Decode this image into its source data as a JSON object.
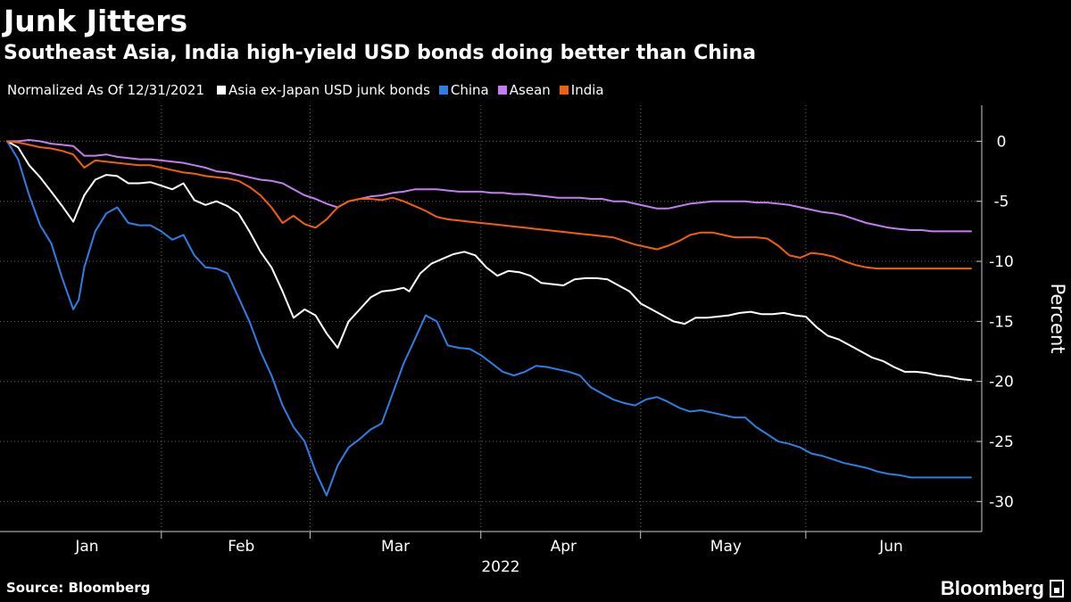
{
  "header": {
    "title": "Junk Jitters",
    "subtitle": "Southeast Asia, India high-yield USD bonds doing better than China"
  },
  "legend": {
    "note": "Normalized As Of 12/31/2021",
    "entries": [
      {
        "label": "Asia ex-Japan USD junk bonds",
        "color": "#ffffff"
      },
      {
        "label": "China",
        "color": "#2f7ee6"
      },
      {
        "label": "Asean",
        "color": "#c47cf2"
      },
      {
        "label": "India",
        "color": "#f2600c"
      }
    ]
  },
  "footer": {
    "source": "Source: Bloomberg",
    "brand": "Bloomberg"
  },
  "chart_data": {
    "type": "line",
    "title": "Junk Jitters",
    "subtitle": "Southeast Asia, India high-yield USD bonds doing better than China",
    "xlabel": "2022",
    "ylabel": "Percent",
    "x_unit": "day of 2022",
    "xlim": [
      0,
      175
    ],
    "ylim": [
      -32.5,
      3
    ],
    "y_ticks": [
      0,
      -5,
      -10,
      -15,
      -20,
      -25,
      -30
    ],
    "y_tick_labels": [
      "0",
      "-5",
      "-10",
      "-15",
      "-20",
      "-25",
      "-30"
    ],
    "month_labels": [
      {
        "label": "Jan",
        "x": 14.5
      },
      {
        "label": "Feb",
        "x": 42.5
      },
      {
        "label": "Mar",
        "x": 70.5
      },
      {
        "label": "Apr",
        "x": 101
      },
      {
        "label": "May",
        "x": 130.5
      },
      {
        "label": "Jun",
        "x": 160.5
      }
    ],
    "month_boundaries": [
      28,
      55,
      86,
      115,
      145
    ],
    "grid": true,
    "legend_position": "top-left",
    "series": [
      {
        "name": "Asia ex-Japan USD junk bonds",
        "color": "#ffffff",
        "x": [
          0,
          2,
          4,
          6,
          8,
          10,
          12,
          14,
          16,
          18,
          20,
          22,
          24,
          26,
          28,
          30,
          32,
          34,
          36,
          38,
          40,
          42,
          44,
          46,
          48,
          50,
          52,
          54,
          56,
          58,
          60,
          62,
          64,
          66,
          68,
          70,
          71,
          72,
          73,
          75,
          77,
          79,
          81,
          83,
          85,
          87,
          89,
          91,
          93,
          95,
          97,
          99,
          101,
          103,
          105,
          107,
          109,
          111,
          113,
          115,
          117,
          119,
          121,
          123,
          125,
          127,
          129,
          131,
          133,
          135,
          137,
          139,
          141,
          143,
          145,
          147,
          149,
          151,
          153,
          155,
          157,
          159,
          161,
          163,
          165,
          167,
          169,
          171,
          173,
          175
        ],
        "values": [
          0,
          -0.5,
          -2,
          -3,
          -4.2,
          -5.4,
          -6.7,
          -4.5,
          -3.2,
          -2.8,
          -2.9,
          -3.5,
          -3.5,
          -3.4,
          -3.7,
          -4,
          -3.5,
          -4.9,
          -5.3,
          -5,
          -5.4,
          -6,
          -7.5,
          -9.2,
          -10.5,
          -12.5,
          -14.7,
          -14,
          -14.5,
          -16,
          -17.2,
          -15,
          -14,
          -13,
          -12.5,
          -12.4,
          -12.3,
          -12.2,
          -12.5,
          -11,
          -10.2,
          -9.8,
          -9.4,
          -9.2,
          -9.5,
          -10.5,
          -11.2,
          -10.8,
          -10.9,
          -11.2,
          -11.8,
          -11.9,
          -12,
          -11.5,
          -11.4,
          -11.4,
          -11.5,
          -12,
          -12.5,
          -13.5,
          -14,
          -14.5,
          -15,
          -15.2,
          -14.7,
          -14.7,
          -14.6,
          -14.5,
          -14.3,
          -14.2,
          -14.4,
          -14.4,
          -14.3,
          -14.5,
          -14.6,
          -15.5,
          -16.2,
          -16.5,
          -17,
          -17.5,
          -18,
          -18.3,
          -18.8,
          -19.2,
          -19.2,
          -19.3,
          -19.5,
          -19.6,
          -19.8,
          -19.9
        ]
      },
      {
        "name": "China",
        "color": "#2f7ee6",
        "x": [
          0,
          2,
          4,
          6,
          8,
          10,
          12,
          13,
          14,
          16,
          18,
          20,
          22,
          24,
          26,
          28,
          30,
          32,
          34,
          36,
          38,
          40,
          42,
          44,
          46,
          48,
          50,
          52,
          54,
          56,
          58,
          60,
          62,
          64,
          66,
          68,
          70,
          72,
          74,
          76,
          78,
          80,
          82,
          84,
          86,
          88,
          90,
          92,
          94,
          96,
          98,
          100,
          102,
          104,
          106,
          108,
          110,
          112,
          114,
          116,
          118,
          120,
          122,
          124,
          126,
          128,
          130,
          132,
          134,
          136,
          138,
          140,
          142,
          144,
          146,
          148,
          150,
          152,
          154,
          156,
          158,
          160,
          162,
          164,
          166,
          168,
          170,
          172,
          174,
          175
        ],
        "values": [
          0,
          -1.5,
          -4.5,
          -7,
          -8.5,
          -11.4,
          -14,
          -13.2,
          -10.5,
          -7.5,
          -6,
          -5.5,
          -6.8,
          -7,
          -7,
          -7.5,
          -8.2,
          -7.8,
          -9.5,
          -10.5,
          -10.6,
          -11,
          -13,
          -15,
          -17.5,
          -19.5,
          -22,
          -23.8,
          -25,
          -27.5,
          -29.5,
          -27,
          -25.5,
          -24.8,
          -24,
          -23.5,
          -21,
          -18.5,
          -16.5,
          -14.5,
          -15,
          -17,
          -17.2,
          -17.3,
          -17.8,
          -18.5,
          -19.2,
          -19.5,
          -19.2,
          -18.7,
          -18.8,
          -19,
          -19.2,
          -19.5,
          -20.5,
          -21,
          -21.5,
          -21.8,
          -22,
          -21.5,
          -21.3,
          -21.7,
          -22.2,
          -22.5,
          -22.4,
          -22.6,
          -22.8,
          -23,
          -23,
          -23.8,
          -24.4,
          -25,
          -25.2,
          -25.5,
          -26,
          -26.2,
          -26.5,
          -26.8,
          -27,
          -27.2,
          -27.5,
          -27.7,
          -27.8,
          -28,
          -28,
          -28,
          -28,
          -28,
          -28,
          -28
        ]
      },
      {
        "name": "Asean",
        "color": "#c47cf2",
        "x": [
          0,
          2,
          4,
          6,
          8,
          10,
          12,
          14,
          16,
          18,
          20,
          22,
          24,
          26,
          28,
          30,
          32,
          34,
          36,
          38,
          40,
          42,
          44,
          46,
          48,
          50,
          52,
          54,
          56,
          58,
          60,
          62,
          64,
          66,
          68,
          70,
          72,
          74,
          76,
          78,
          80,
          82,
          84,
          86,
          88,
          90,
          92,
          94,
          96,
          98,
          100,
          102,
          104,
          106,
          108,
          110,
          112,
          114,
          116,
          118,
          120,
          122,
          124,
          126,
          128,
          130,
          132,
          134,
          136,
          138,
          140,
          142,
          144,
          146,
          148,
          150,
          152,
          154,
          156,
          158,
          160,
          162,
          164,
          166,
          168,
          170,
          172,
          174,
          175
        ],
        "values": [
          0,
          0,
          0.1,
          0,
          -0.2,
          -0.3,
          -0.4,
          -1.2,
          -1.2,
          -1.1,
          -1.3,
          -1.4,
          -1.5,
          -1.5,
          -1.6,
          -1.7,
          -1.8,
          -2,
          -2.2,
          -2.5,
          -2.6,
          -2.8,
          -3,
          -3.2,
          -3.3,
          -3.5,
          -4,
          -4.5,
          -4.8,
          -5.2,
          -5.5,
          -5,
          -4.8,
          -4.6,
          -4.5,
          -4.3,
          -4.2,
          -4,
          -4,
          -4,
          -4.1,
          -4.2,
          -4.2,
          -4.2,
          -4.3,
          -4.3,
          -4.4,
          -4.4,
          -4.5,
          -4.6,
          -4.7,
          -4.7,
          -4.7,
          -4.8,
          -4.8,
          -5,
          -5,
          -5.2,
          -5.4,
          -5.6,
          -5.6,
          -5.4,
          -5.2,
          -5.1,
          -5,
          -5,
          -5,
          -5,
          -5.1,
          -5.1,
          -5.2,
          -5.3,
          -5.5,
          -5.7,
          -5.9,
          -6,
          -6.2,
          -6.5,
          -6.8,
          -7,
          -7.2,
          -7.3,
          -7.4,
          -7.4,
          -7.5,
          -7.5,
          -7.5,
          -7.5,
          -7.5
        ]
      },
      {
        "name": "India",
        "color": "#f2600c",
        "x": [
          0,
          2,
          4,
          6,
          8,
          10,
          12,
          14,
          16,
          18,
          20,
          22,
          24,
          26,
          28,
          30,
          32,
          34,
          36,
          38,
          40,
          42,
          44,
          46,
          48,
          50,
          52,
          54,
          56,
          58,
          60,
          62,
          64,
          66,
          68,
          70,
          72,
          74,
          76,
          78,
          80,
          82,
          84,
          86,
          88,
          90,
          92,
          94,
          96,
          98,
          100,
          102,
          104,
          106,
          108,
          110,
          112,
          114,
          116,
          118,
          120,
          122,
          124,
          126,
          128,
          130,
          132,
          134,
          136,
          138,
          140,
          142,
          144,
          146,
          148,
          150,
          152,
          154,
          156,
          158,
          160,
          162,
          164,
          166,
          168,
          170,
          172,
          174,
          175
        ],
        "values": [
          0,
          -0.1,
          -0.3,
          -0.5,
          -0.6,
          -0.8,
          -1.1,
          -2.2,
          -1.6,
          -1.7,
          -1.8,
          -1.9,
          -2,
          -2,
          -2.2,
          -2.4,
          -2.6,
          -2.7,
          -2.9,
          -3,
          -3.1,
          -3.3,
          -3.8,
          -4.5,
          -5.5,
          -6.8,
          -6.2,
          -6.9,
          -7.2,
          -6.5,
          -5.5,
          -5,
          -4.8,
          -4.8,
          -4.9,
          -4.7,
          -5,
          -5.4,
          -5.8,
          -6.3,
          -6.5,
          -6.6,
          -6.7,
          -6.8,
          -6.9,
          -7,
          -7.1,
          -7.2,
          -7.3,
          -7.4,
          -7.5,
          -7.6,
          -7.7,
          -7.8,
          -7.9,
          -8,
          -8.3,
          -8.6,
          -8.8,
          -9,
          -8.7,
          -8.3,
          -7.8,
          -7.6,
          -7.6,
          -7.8,
          -8,
          -8,
          -8,
          -8.1,
          -8.7,
          -9.5,
          -9.7,
          -9.3,
          -9.4,
          -9.6,
          -10,
          -10.3,
          -10.5,
          -10.6,
          -10.6,
          -10.6,
          -10.6,
          -10.6,
          -10.6,
          -10.6,
          -10.6,
          -10.6,
          -10.6
        ]
      }
    ]
  }
}
